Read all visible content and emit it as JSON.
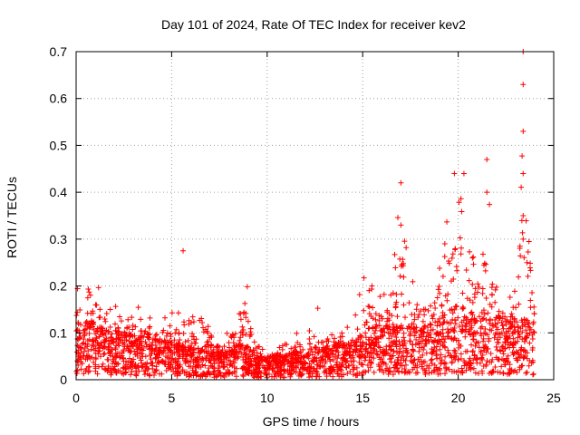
{
  "chart_data": {
    "type": "scatter",
    "title": "Day 101 of 2024, Rate Of TEC Index for receiver kev2",
    "xlabel": "GPS time / hours",
    "ylabel": "ROTI / TECUs",
    "xlim": [
      0,
      25
    ],
    "ylim": [
      0,
      0.7
    ],
    "x_ticks": [
      "0",
      "5",
      "10",
      "15",
      "20",
      "25"
    ],
    "y_ticks": [
      "0",
      "0.1",
      "0.2",
      "0.3",
      "0.4",
      "0.5",
      "0.6",
      "0.7"
    ],
    "grid": true,
    "legend": "none",
    "marker": "plus",
    "series": [
      {
        "color": "#ff0000",
        "x": [
          0.0,
          0.5,
          1.0,
          1.5,
          2.0,
          2.5,
          3.0,
          3.5,
          4.0,
          4.5,
          5.0,
          5.5,
          6.0,
          6.5,
          7.0,
          7.5,
          8.0,
          8.5,
          9.0,
          9.5,
          10.0,
          10.5,
          11.0,
          11.5,
          12.0,
          12.5,
          13.0,
          13.5,
          14.0,
          14.5,
          15.0,
          15.5,
          16.0,
          16.5,
          17.0,
          17.5,
          18.0,
          18.5,
          19.0,
          19.5,
          20.0,
          20.5,
          21.0,
          21.5,
          22.0,
          22.5,
          23.0,
          23.5,
          24.0
        ],
        "mean": [
          0.07,
          0.075,
          0.07,
          0.065,
          0.06,
          0.058,
          0.055,
          0.055,
          0.05,
          0.05,
          0.048,
          0.045,
          0.04,
          0.038,
          0.035,
          0.035,
          0.04,
          0.045,
          0.04,
          0.03,
          0.028,
          0.03,
          0.032,
          0.035,
          0.035,
          0.04,
          0.04,
          0.042,
          0.045,
          0.045,
          0.06,
          0.065,
          0.065,
          0.068,
          0.07,
          0.065,
          0.065,
          0.07,
          0.075,
          0.085,
          0.095,
          0.09,
          0.085,
          0.085,
          0.08,
          0.075,
          0.075,
          0.075,
          0.07
        ],
        "peak": [
          0.24,
          0.2,
          0.23,
          0.19,
          0.16,
          0.15,
          0.16,
          0.15,
          0.13,
          0.14,
          0.17,
          0.14,
          0.13,
          0.18,
          0.1,
          0.1,
          0.12,
          0.2,
          0.22,
          0.08,
          0.06,
          0.07,
          0.08,
          0.1,
          0.1,
          0.19,
          0.09,
          0.1,
          0.13,
          0.11,
          0.24,
          0.2,
          0.22,
          0.2,
          0.42,
          0.22,
          0.2,
          0.15,
          0.29,
          0.35,
          0.43,
          0.32,
          0.28,
          0.47,
          0.2,
          0.18,
          0.2,
          0.7,
          0.2
        ],
        "outliers": [
          [
            5.6,
            0.275
          ],
          [
            17.0,
            0.42
          ],
          [
            17.0,
            0.33
          ],
          [
            19.3,
            0.29
          ],
          [
            19.8,
            0.44
          ],
          [
            20.3,
            0.44
          ],
          [
            21.5,
            0.47
          ],
          [
            21.5,
            0.4
          ],
          [
            23.4,
            0.7
          ],
          [
            23.4,
            0.63
          ],
          [
            23.4,
            0.53
          ],
          [
            23.4,
            0.44
          ],
          [
            23.4,
            0.35
          ],
          [
            23.4,
            0.3
          ],
          [
            23.6,
            0.25
          ]
        ]
      }
    ]
  }
}
